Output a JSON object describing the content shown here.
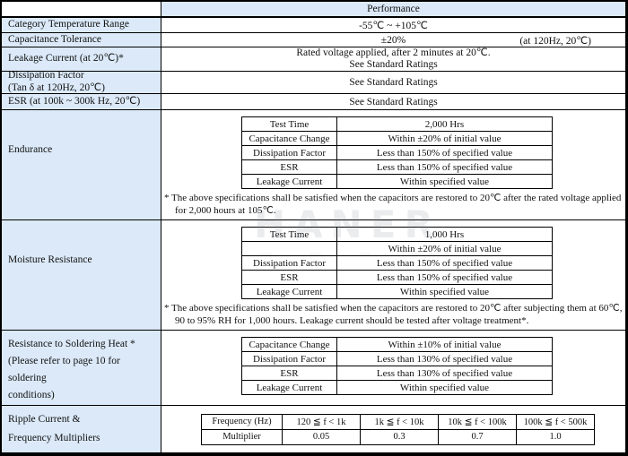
{
  "header": {
    "performance": "Performance"
  },
  "colors": {
    "label_bg": "#dbe9f8",
    "border": "#000000"
  },
  "rows": {
    "category_temp": {
      "label": "Category Temperature Range",
      "value": "-55℃  ~ +105℃"
    },
    "cap_tolerance": {
      "label": "Capacitance Tolerance",
      "value": "±20%",
      "condition": "(at 120Hz, 20℃)"
    },
    "leakage": {
      "label": "Leakage Current (at 20℃)*",
      "line1": "Rated voltage applied, after 2 minutes at 20℃.",
      "line2": "See Standard Ratings"
    },
    "dissipation": {
      "label_line1": "Dissipation Factor",
      "label_line2": "(Tan δ  at 120Hz, 20℃)",
      "value": "See Standard Ratings"
    },
    "esr": {
      "label": "ESR (at 100k ~ 300k Hz, 20℃)",
      "value": "See Standard Ratings"
    }
  },
  "endurance": {
    "label": "Endurance",
    "table": [
      [
        "Test Time",
        "2,000 Hrs"
      ],
      [
        "Capacitance Change",
        "Within ±20% of initial value"
      ],
      [
        "Dissipation Factor",
        "Less than 150% of specified value"
      ],
      [
        "ESR",
        "Less than 150% of specified value"
      ],
      [
        "Leakage Current",
        "Within specified value"
      ]
    ],
    "footnote_line1": "* The above specifications shall be satisfied when the capacitors are restored to 20℃ after the rated voltage applied",
    "footnote_line2": "for 2,000 hours at 105℃."
  },
  "moisture": {
    "label": "Moisture Resistance",
    "table": [
      [
        "Test Time",
        "1,000 Hrs"
      ],
      [
        "",
        "Within ±20% of initial value"
      ],
      [
        "Dissipation Factor",
        "Less than 150% of specified value"
      ],
      [
        "ESR",
        "Less than 150% of specified value"
      ],
      [
        "Leakage Current",
        "Within specified value"
      ]
    ],
    "footnote_line1": "* The above specifications shall be satisfied when the capacitors are restored to 20℃  after subjecting them at 60℃,",
    "footnote_line2": "90 to 95% RH for 1,000 hours. Leakage current should be tested after voltage treatment*."
  },
  "soldering": {
    "label_line1": "Resistance to Soldering Heat *",
    "label_line2": "(Please refer to page 10 for soldering",
    "label_line3": "conditions)",
    "table": [
      [
        "Capacitance Change",
        "Within ±10% of initial value"
      ],
      [
        "Dissipation Factor",
        "Less than 130% of specified value"
      ],
      [
        "ESR",
        "Less than 130% of specified value"
      ],
      [
        "Leakage Current",
        "Within specified value"
      ]
    ]
  },
  "ripple": {
    "label_line1": "Ripple Current &",
    "label_line2": "Frequency Multipliers",
    "header_label": "Frequency (Hz)",
    "row_label": "Multiplier",
    "bands": [
      "120 ≦ f < 1k",
      "1k ≦ f < 10k",
      "10k ≦ f < 100k",
      "100k ≦ f < 500k"
    ],
    "multipliers": [
      "0.05",
      "0.3",
      "0.7",
      "1.0"
    ]
  },
  "watermark": {
    "text": "HANER",
    "dashes": "— — —"
  }
}
